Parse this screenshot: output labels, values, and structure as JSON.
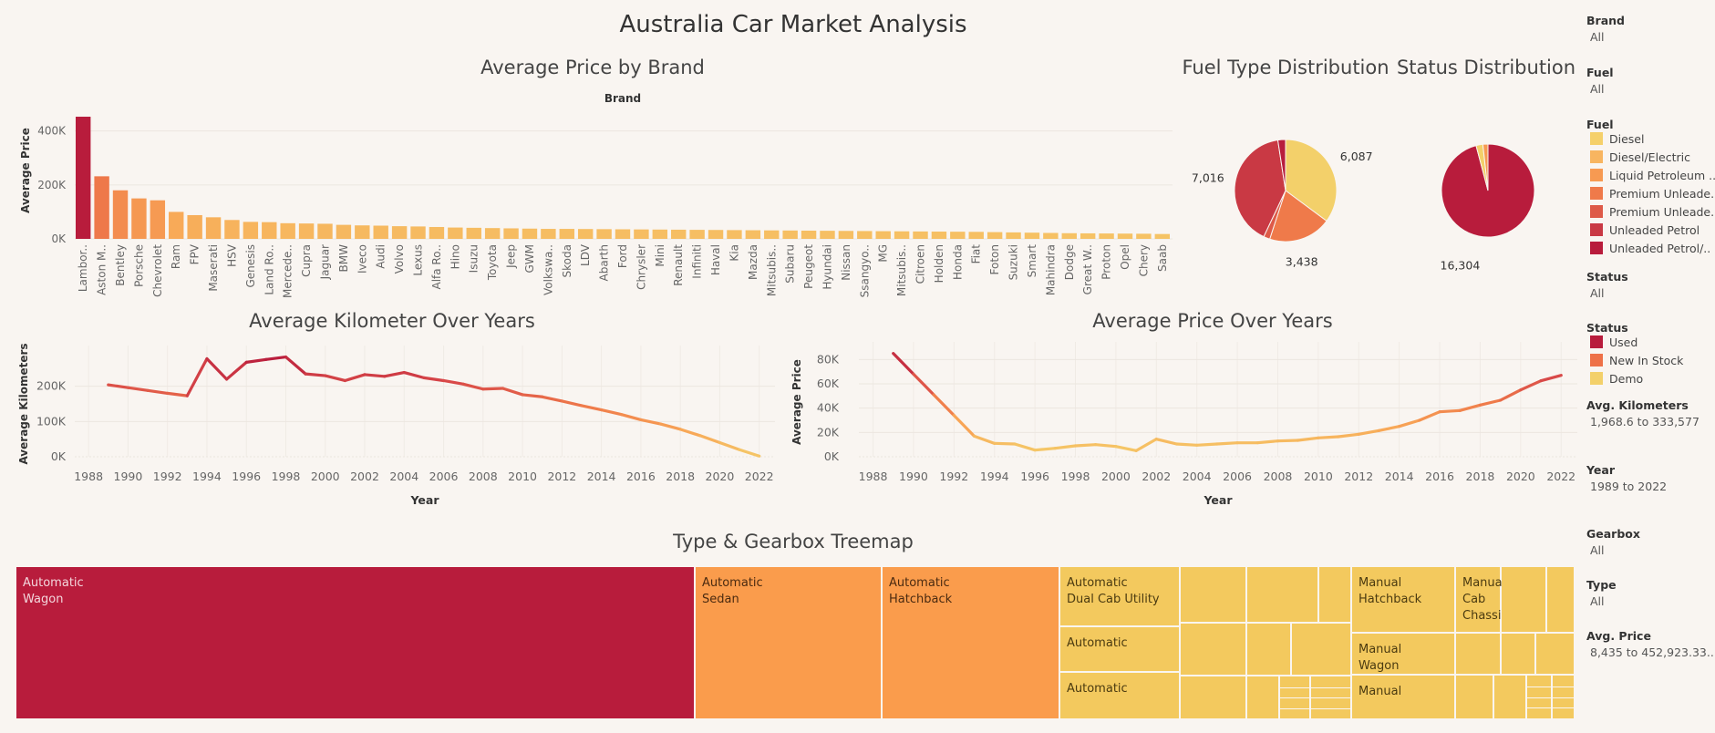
{
  "title": "Australia Car Market Analysis",
  "chart_data": [
    {
      "type": "bar",
      "title": "Average Price by Brand",
      "xlabel": "Brand",
      "ylabel": "Average Price",
      "ylim": [
        0,
        480000
      ],
      "yticks": [
        "0K",
        "200K",
        "400K"
      ],
      "categories": [
        "Lambor..",
        "Aston M..",
        "Bentley",
        "Porsche",
        "Chevrolet",
        "Ram",
        "FPV",
        "Maserati",
        "HSV",
        "Genesis",
        "Land Ro..",
        "Mercede..",
        "Cupra",
        "Jaguar",
        "BMW",
        "Iveco",
        "Audi",
        "Volvo",
        "Lexus",
        "Alfa Ro..",
        "Hino",
        "Isuzu",
        "Toyota",
        "Jeep",
        "GWM",
        "Volkswa..",
        "Skoda",
        "LDV",
        "Abarth",
        "Ford",
        "Chrysler",
        "Mini",
        "Renault",
        "Infiniti",
        "Haval",
        "Kia",
        "Mazda",
        "Mitsubis..",
        "Subaru",
        "Peugeot",
        "Hyundai",
        "Nissan",
        "Ssangyo..",
        "MG",
        "Mitsubis..",
        "Citroen",
        "Holden",
        "Honda",
        "Fiat",
        "Foton",
        "Suzuki",
        "Smart",
        "Mahindra",
        "Dodge",
        "Great W..",
        "Proton",
        "Opel",
        "Chery",
        "Saab"
      ],
      "values": [
        452923,
        232000,
        180000,
        150000,
        143000,
        100000,
        88000,
        80000,
        70000,
        63000,
        62000,
        58000,
        57000,
        56000,
        52000,
        50000,
        49000,
        47000,
        46000,
        44000,
        42000,
        41000,
        40000,
        39000,
        38000,
        37000,
        37000,
        36500,
        36000,
        35500,
        35000,
        34500,
        34000,
        33500,
        33000,
        32500,
        32000,
        31500,
        31000,
        30500,
        30000,
        29500,
        29000,
        28500,
        28000,
        27500,
        27000,
        26500,
        26000,
        25000,
        24000,
        23000,
        22000,
        21000,
        20500,
        20000,
        19500,
        19000,
        18000
      ]
    },
    {
      "type": "pie",
      "title": "Fuel Type Distribution",
      "slices": [
        {
          "name": "Diesel",
          "value": 6087,
          "label": "6,087"
        },
        {
          "name": "Liquid Petroleum ..",
          "value": 3438,
          "label": "3,438"
        },
        {
          "name": "Premium Unleade..",
          "value": 350,
          "label": ""
        },
        {
          "name": "Unleaded Petrol",
          "value": 7016,
          "label": "7,016"
        },
        {
          "name": "Unleaded Petrol/..",
          "value": 420,
          "label": ""
        }
      ]
    },
    {
      "type": "pie",
      "title": "Status Distribution",
      "slices": [
        {
          "name": "Used",
          "value": 16304,
          "label": "16,304"
        },
        {
          "name": "Demo",
          "value": 400,
          "label": ""
        },
        {
          "name": "New In Stock",
          "value": 300,
          "label": ""
        }
      ]
    },
    {
      "type": "line",
      "title": "Average Kilometer Over Years",
      "xlabel": "Year",
      "ylabel": "Average Kilometers",
      "xlim": [
        1987.3,
        1989,
        2022.8
      ],
      "ylim": [
        0,
        300000
      ],
      "xticks": [
        1988,
        1990,
        1992,
        1994,
        1996,
        1998,
        2000,
        2002,
        2004,
        2006,
        2008,
        2010,
        2012,
        2014,
        2016,
        2018,
        2020,
        2022
      ],
      "yticks": [
        "0K",
        "100K",
        "200K"
      ],
      "x": [
        1989,
        1990,
        1991,
        1992,
        1993,
        1994,
        1995,
        1996,
        1997,
        1998,
        1999,
        2000,
        2001,
        2002,
        2003,
        2004,
        2005,
        2006,
        2007,
        2008,
        2009,
        2010,
        2011,
        2012,
        2013,
        2014,
        2015,
        2016,
        2017,
        2018,
        2019,
        2020,
        2021,
        2022
      ],
      "y": [
        204000,
        196000,
        188000,
        180000,
        173000,
        278000,
        220000,
        268000,
        276000,
        283000,
        235000,
        230000,
        216000,
        233000,
        228000,
        239000,
        224000,
        216000,
        206000,
        192000,
        194000,
        176000,
        170000,
        158000,
        145000,
        133000,
        120000,
        105000,
        93000,
        78000,
        60000,
        40000,
        20000,
        2000
      ]
    },
    {
      "type": "line",
      "title": "Average Price Over Years",
      "xlabel": "Year",
      "ylabel": "Average Price",
      "xlim": [
        1987.3,
        2022.8
      ],
      "ylim": [
        0,
        90000
      ],
      "xticks": [
        1988,
        1990,
        1992,
        1994,
        1996,
        1998,
        2000,
        2002,
        2004,
        2006,
        2008,
        2010,
        2012,
        2014,
        2016,
        2018,
        2020,
        2022
      ],
      "yticks": [
        "0K",
        "20K",
        "40K",
        "60K",
        "80K"
      ],
      "x": [
        1989,
        1990,
        1991,
        1992,
        1993,
        1994,
        1995,
        1996,
        1997,
        1998,
        1999,
        2000,
        2001,
        2002,
        2003,
        2004,
        2005,
        2006,
        2007,
        2008,
        2009,
        2010,
        2011,
        2012,
        2013,
        2014,
        2015,
        2016,
        2017,
        2018,
        2019,
        2020,
        2021,
        2022
      ],
      "y": [
        85000,
        68000,
        51000,
        34000,
        17000,
        11000,
        10500,
        5500,
        7000,
        9000,
        10000,
        8500,
        5000,
        14500,
        10500,
        9500,
        10500,
        11500,
        11500,
        13000,
        13500,
        15500,
        16500,
        18500,
        21500,
        25000,
        30000,
        37000,
        38000,
        42500,
        46500,
        55000,
        62500,
        67000
      ]
    },
    {
      "type": "treemap",
      "title": "Type & Gearbox Treemap",
      "cells": [
        {
          "label": "Automatic\nWagon",
          "value": 3100,
          "color": "#b81c3c",
          "text_color": "#f3d6dc"
        },
        {
          "label": "Automatic\nSedan",
          "value": 850,
          "color": "#fa9c4c",
          "text_color": "#4a2a10"
        },
        {
          "label": "Automatic\nHatchback",
          "value": 800,
          "color": "#fa9c4c",
          "text_color": "#4a2a10"
        },
        {
          "label": "Automatic\nDual Cab Utility",
          "value": 250,
          "color": "#f3c95e",
          "text_color": "#4a3a10"
        },
        {
          "label": "Automatic",
          "value": 230,
          "color": "#f3c95e",
          "text_color": "#4a3a10"
        },
        {
          "label": "Automatic",
          "value": 220,
          "color": "#f3c95e",
          "text_color": "#4a3a10"
        },
        {
          "label": "Manual\nHatchback",
          "value": 300,
          "color": "#f3c95e",
          "text_color": "#4a3a10"
        },
        {
          "label": "Manual\nCab\nChassis",
          "value": 210,
          "color": "#f3c95e",
          "text_color": "#4a3a10"
        },
        {
          "label": "Manual\nWagon",
          "value": 200,
          "color": "#f3c95e",
          "text_color": "#4a3a10"
        },
        {
          "label": "Manual",
          "value": 180,
          "color": "#f3c95e",
          "text_color": "#4a3a10"
        }
      ]
    }
  ],
  "filters": {
    "brand": {
      "label": "Brand",
      "value": "All"
    },
    "fuel": {
      "label": "Fuel",
      "value": "All"
    },
    "fuel_legend_title": "Fuel",
    "fuel_legend": [
      {
        "name": "Diesel",
        "color": "#f5d06a"
      },
      {
        "name": "Diesel/Electric",
        "color": "#f8b560"
      },
      {
        "name": "Liquid Petroleum ..",
        "color": "#f79a52"
      },
      {
        "name": "Premium Unleade..",
        "color": "#ef7a4a"
      },
      {
        "name": "Premium Unleade..",
        "color": "#de5a48"
      },
      {
        "name": "Unleaded Petrol",
        "color": "#c93944"
      },
      {
        "name": "Unleaded Petrol/..",
        "color": "#b81c3c"
      }
    ],
    "status": {
      "label": "Status",
      "value": "All"
    },
    "status_legend_title": "Status",
    "status_legend": [
      {
        "name": "Used",
        "color": "#b81c3c"
      },
      {
        "name": "New In Stock",
        "color": "#ee7148"
      },
      {
        "name": "Demo",
        "color": "#f3d06a"
      }
    ],
    "avg_km": {
      "label": "Avg. Kilometers",
      "value": "1,968.6 to 333,577"
    },
    "year": {
      "label": "Year",
      "value": "1989 to 2022"
    },
    "gearbox": {
      "label": "Gearbox",
      "value": "All"
    },
    "type": {
      "label": "Type",
      "value": "All"
    },
    "avg_price": {
      "label": "Avg. Price",
      "value": "8,435 to 452,923.33.."
    }
  }
}
